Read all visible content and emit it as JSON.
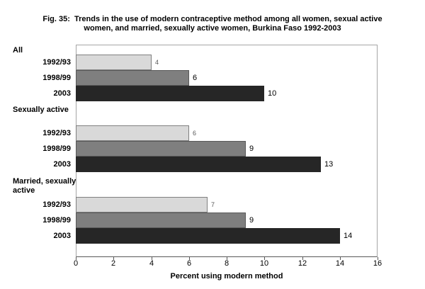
{
  "figure": {
    "title_line1": "Fig. 35:  Trends in the use of modern contraceptive method among all women, sexual active",
    "title_line2": "women, and married, sexually active women, Burkina Faso 1992-2003"
  },
  "chart_data": {
    "type": "bar",
    "orientation": "horizontal",
    "title": "Fig. 35: Trends in the use of modern contraceptive method among all women, sexual active women, and married, sexually active women, Burkina Faso 1992-2003",
    "xlabel": "Percent using modern method",
    "xlim": [
      0,
      16
    ],
    "xticks": [
      0,
      2,
      4,
      6,
      8,
      10,
      12,
      14,
      16
    ],
    "grid": false,
    "legend": "none",
    "series_order": [
      "1992/93",
      "1998/99",
      "2003"
    ],
    "series_colors": {
      "1992/93": "#d9d9d9",
      "1998/99": "#7f7f7f",
      "2003": "#262626"
    },
    "series_border_colors": {
      "1992/93": "#808080",
      "1998/99": "#595959",
      "2003": "#262626"
    },
    "value_label_styles": {
      "1992/93": {
        "color": "#595959",
        "size": 9
      },
      "1998/99": {
        "color": "#000000",
        "size": 11
      },
      "2003": {
        "color": "#000000",
        "size": 11
      }
    },
    "groups": [
      {
        "label": "All",
        "bars": [
          {
            "period": "1992/93",
            "value": 4
          },
          {
            "period": "1998/99",
            "value": 6
          },
          {
            "period": "2003",
            "value": 10
          }
        ]
      },
      {
        "label": "Sexually active",
        "bars": [
          {
            "period": "1992/93",
            "value": 6
          },
          {
            "period": "1998/99",
            "value": 9
          },
          {
            "period": "2003",
            "value": 13
          }
        ]
      },
      {
        "label": "Married, sexually active",
        "bars": [
          {
            "period": "1992/93",
            "value": 7
          },
          {
            "period": "1998/99",
            "value": 9
          },
          {
            "period": "2003",
            "value": 14
          }
        ]
      }
    ]
  }
}
